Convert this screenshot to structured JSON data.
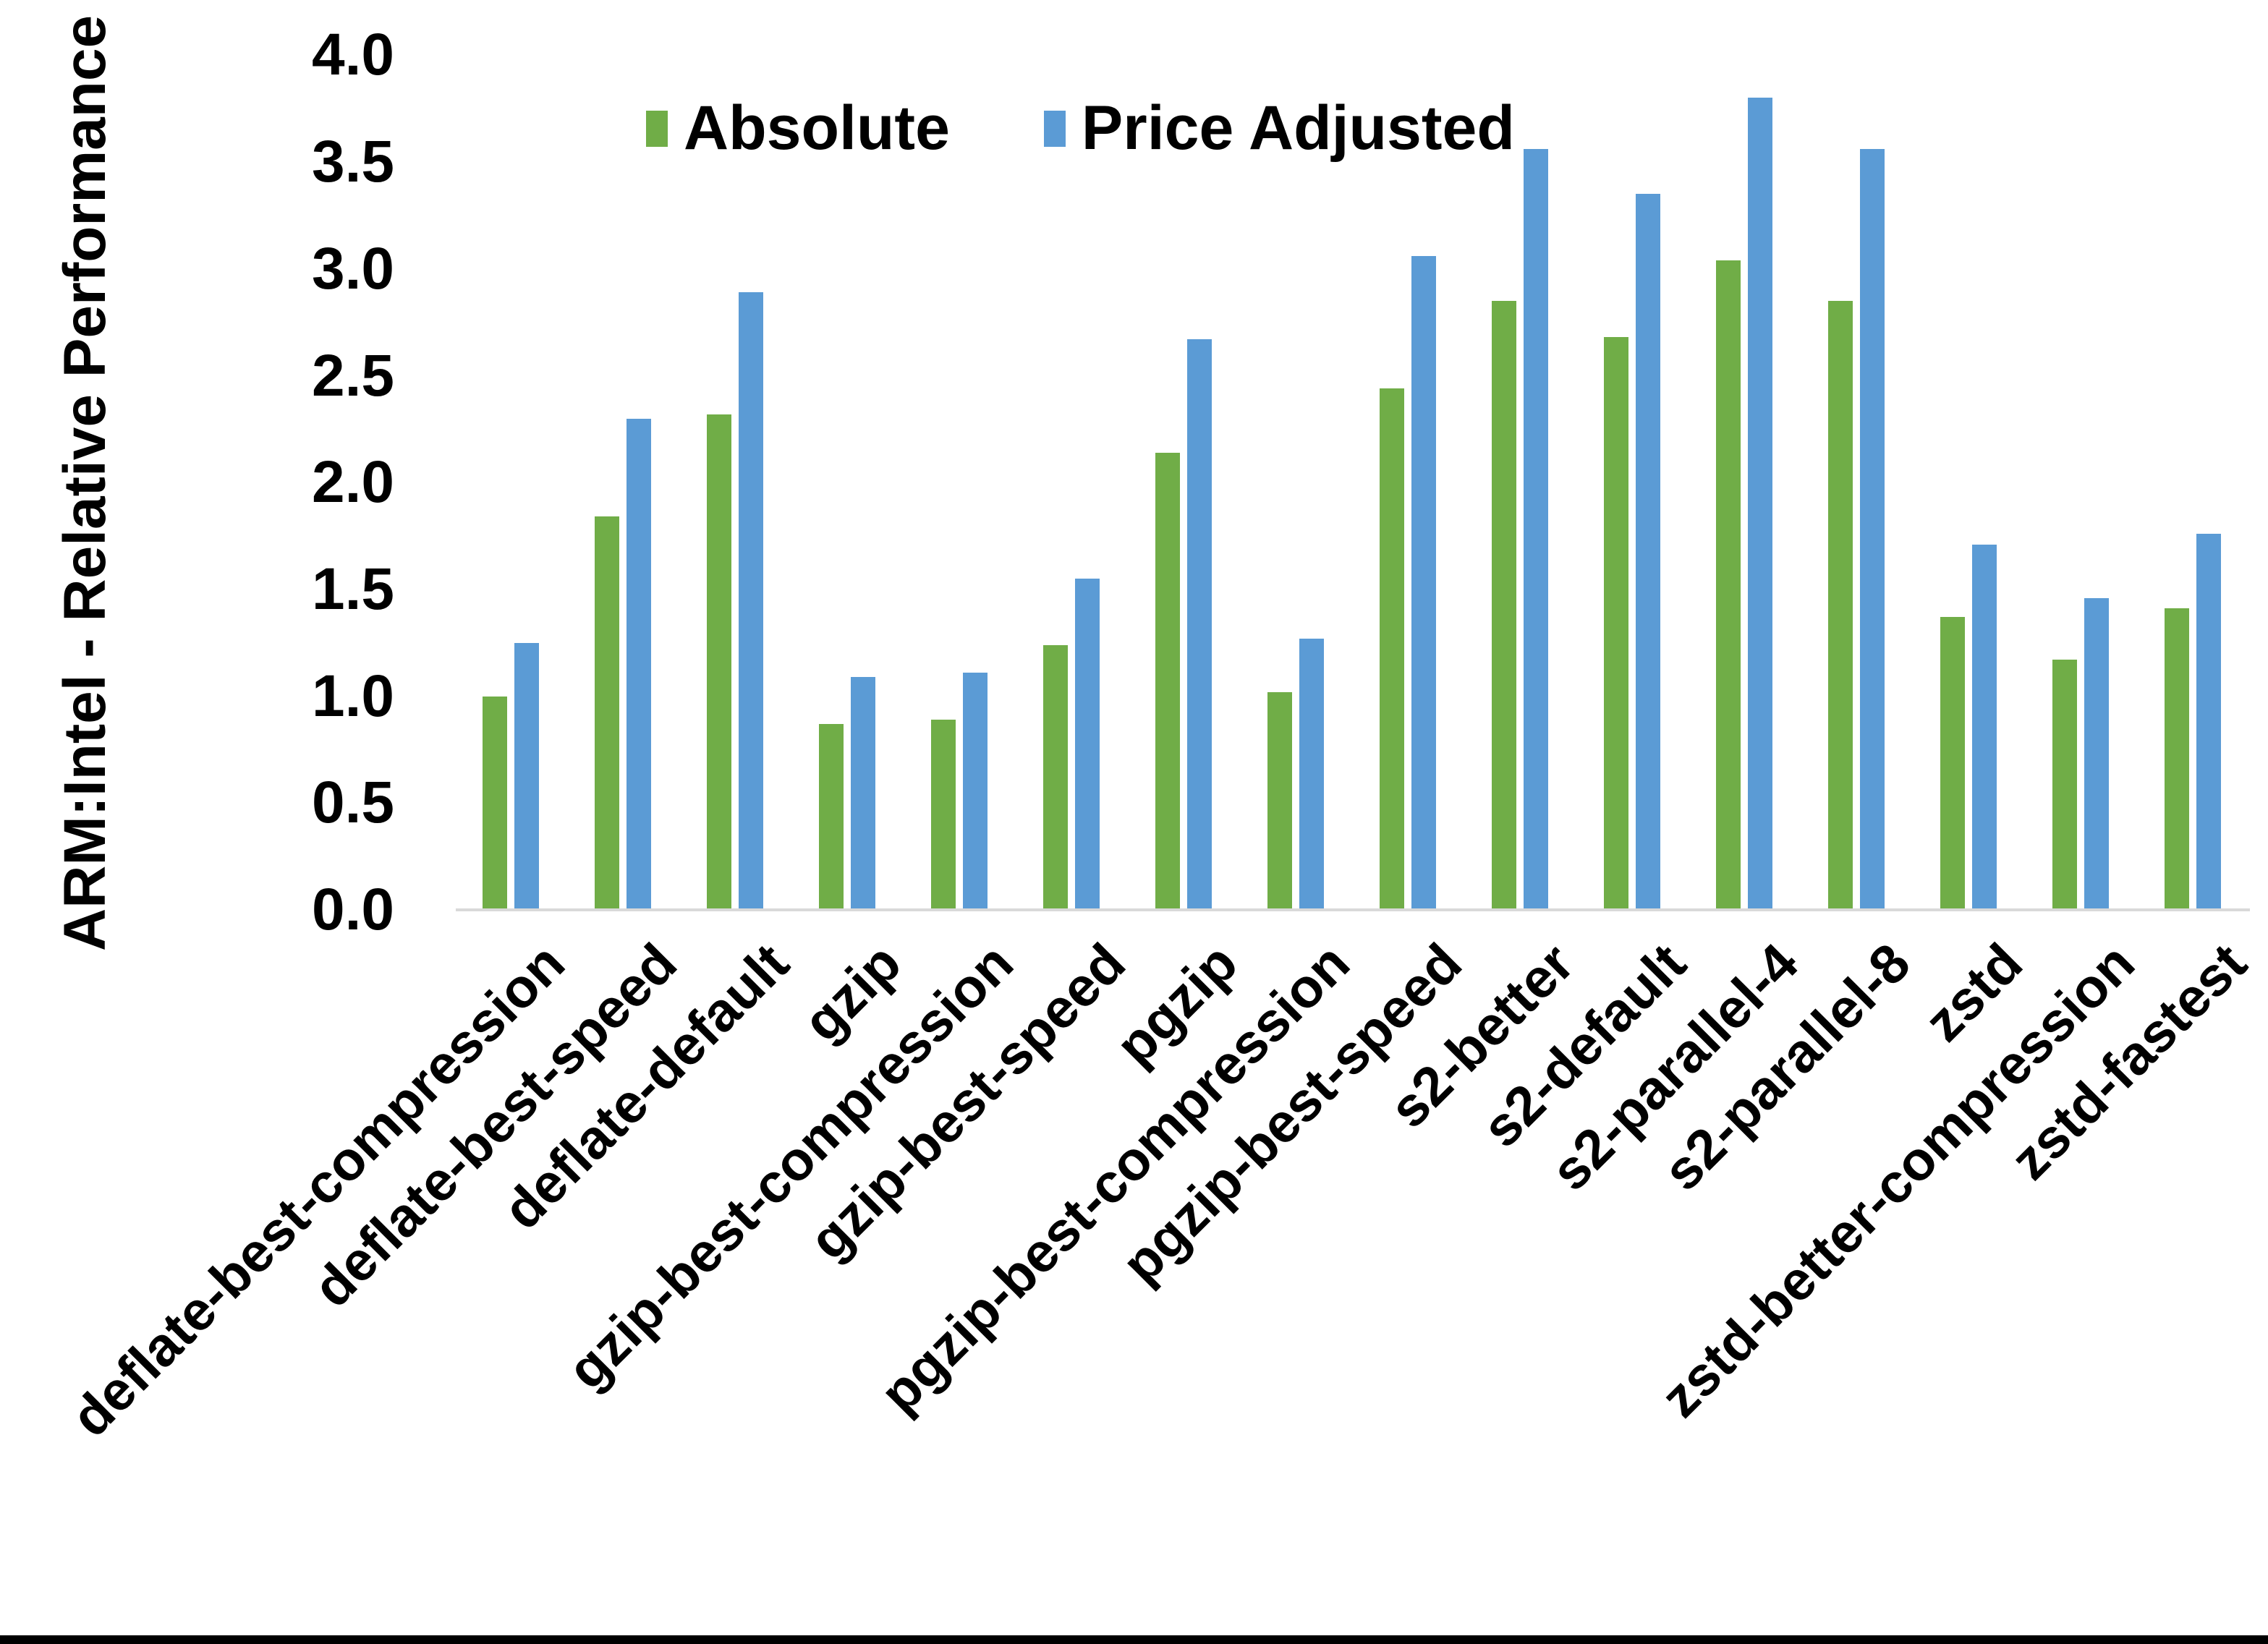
{
  "chart_data": {
    "type": "bar",
    "title": "",
    "xlabel": "",
    "ylabel": "ARM:Intel - Relative Performance",
    "ylim": [
      0.0,
      4.0
    ],
    "ytick_step": 0.5,
    "yticks": [
      "0.0",
      "0.5",
      "1.0",
      "1.5",
      "2.0",
      "2.5",
      "3.0",
      "3.5",
      "4.0"
    ],
    "grid": false,
    "legend_position": "top-center",
    "categories": [
      "deflate-best-compression",
      "deflate-best-speed",
      "deflate-default",
      "gzip",
      "gzip-best-compression",
      "gzip-best-speed",
      "pgzip",
      "pgzip-best-compression",
      "pgzip-best-speed",
      "s2-better",
      "s2-default",
      "s2-parallel-4",
      "s2-parallel-8",
      "zstd",
      "zstd-better-compression",
      "zstd-fastest"
    ],
    "series": [
      {
        "name": "Absolute",
        "color": "#70AD47",
        "values": [
          1.0,
          1.84,
          2.32,
          0.87,
          0.89,
          1.24,
          2.14,
          1.02,
          2.44,
          2.85,
          2.68,
          3.04,
          2.85,
          1.37,
          1.17,
          1.41
        ]
      },
      {
        "name": "Price Adjusted",
        "color": "#5B9BD5",
        "values": [
          1.25,
          2.3,
          2.89,
          1.09,
          1.11,
          1.55,
          2.67,
          1.27,
          3.06,
          3.56,
          3.35,
          3.8,
          3.56,
          1.71,
          1.46,
          1.76
        ]
      }
    ],
    "axis_line_color": "#D9D9D9",
    "text_color": "#000000",
    "background_color": "#FFFFFF"
  }
}
